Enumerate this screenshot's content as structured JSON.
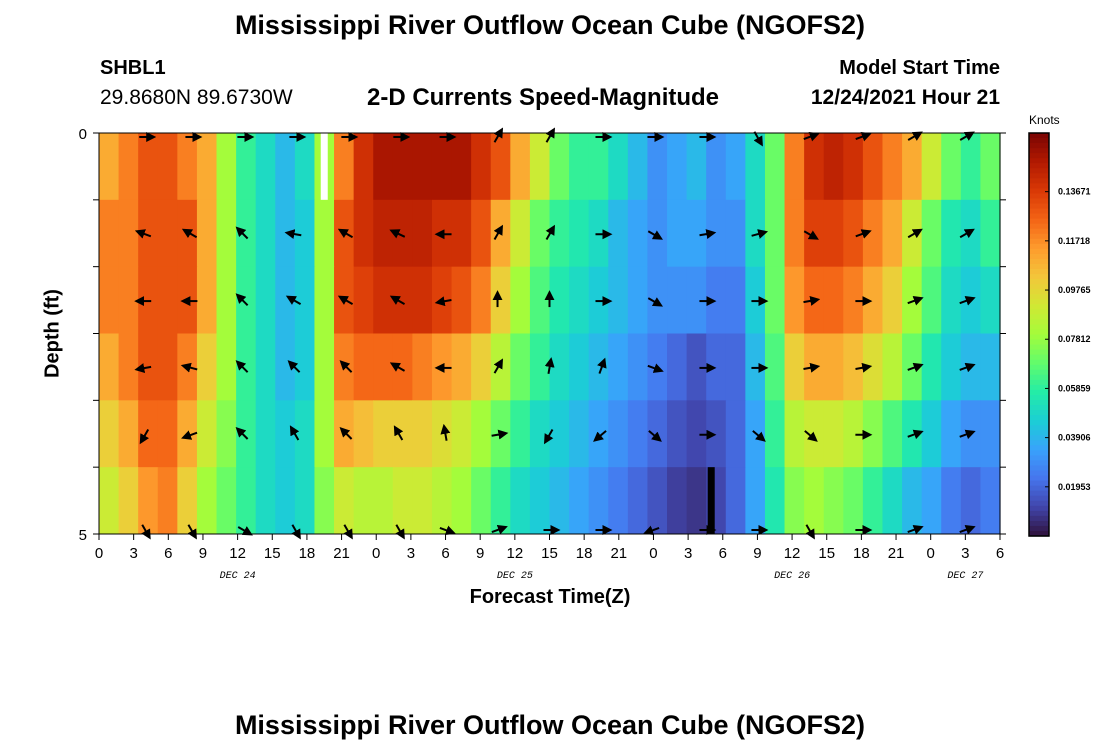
{
  "header": {
    "title": "Mississippi River Outflow Ocean Cube (NGOFS2)",
    "station_name": "SHBL1",
    "station_coords": "29.8680N  89.6730W",
    "plot_title": "2-D Currents Speed-Magnitude",
    "model_start_label": "Model Start Time",
    "model_start_value": "12/24/2021 Hour 21"
  },
  "footer": {
    "title": "Mississippi River Outflow Ocean Cube (NGOFS2)"
  },
  "colors": {
    "colormap": [
      "#30123b",
      "#4145ab",
      "#4675ed",
      "#39a2fc",
      "#1bcfd4",
      "#24eca6",
      "#61fc6c",
      "#a4fc3b",
      "#d1e834",
      "#f3c63a",
      "#fe9b2d",
      "#f36315",
      "#d93806",
      "#b11901",
      "#7a0403"
    ]
  },
  "chart_data": {
    "type": "heatmap",
    "xlabel": "Forecast Time(Z)",
    "ylabel": "Depth (ft)",
    "x_tick_labels": [
      "0",
      "3",
      "6",
      "9",
      "12",
      "15",
      "18",
      "21",
      "0",
      "3",
      "6",
      "9",
      "12",
      "15",
      "18",
      "21",
      "0",
      "3",
      "6",
      "9",
      "12",
      "15",
      "18",
      "21",
      "0",
      "3",
      "6"
    ],
    "day_labels": [
      {
        "label": "DEC 24",
        "at_tick": 4
      },
      {
        "label": "DEC 25",
        "at_tick": 12
      },
      {
        "label": "DEC 26",
        "at_tick": 20
      },
      {
        "label": "DEC 27",
        "at_tick": 25
      }
    ],
    "y_tick_labels": [
      "0",
      "5"
    ],
    "ylim": [
      0,
      5
    ],
    "x_range_hours": [
      0,
      78
    ],
    "colorbar": {
      "title": "Knots",
      "ticks": [
        "0.13671",
        "0.11718",
        "0.09765",
        "0.07812",
        "0.05859",
        "0.03906",
        "0.01953"
      ],
      "tick_values": [
        0.13671,
        0.11718,
        0.09765,
        0.07812,
        0.05859,
        0.03906,
        0.01953
      ],
      "range": [
        0.0,
        0.16
      ]
    },
    "speed_knots_surface_to_bottom": [
      [
        0.11,
        0.12,
        0.13,
        0.13,
        0.12,
        0.11,
        0.08,
        0.06,
        0.05,
        0.04,
        0.05,
        0.08,
        0.12,
        0.14,
        0.15,
        0.15,
        0.15,
        0.15,
        0.15,
        0.14,
        0.13,
        0.11,
        0.09,
        0.07,
        0.06,
        0.06,
        0.05,
        0.04,
        0.03,
        0.035,
        0.04,
        0.03,
        0.035,
        0.05,
        0.07,
        0.12,
        0.14,
        0.145,
        0.14,
        0.13,
        0.12,
        0.11,
        0.09,
        0.07,
        0.06,
        0.07
      ],
      [
        0.12,
        0.12,
        0.13,
        0.13,
        0.13,
        0.11,
        0.08,
        0.06,
        0.05,
        0.04,
        0.045,
        0.08,
        0.13,
        0.14,
        0.145,
        0.145,
        0.145,
        0.14,
        0.14,
        0.13,
        0.11,
        0.09,
        0.07,
        0.06,
        0.055,
        0.05,
        0.04,
        0.035,
        0.03,
        0.035,
        0.035,
        0.03,
        0.03,
        0.05,
        0.07,
        0.12,
        0.135,
        0.135,
        0.13,
        0.12,
        0.11,
        0.09,
        0.07,
        0.055,
        0.05,
        0.06
      ],
      [
        0.12,
        0.12,
        0.13,
        0.13,
        0.13,
        0.11,
        0.08,
        0.06,
        0.05,
        0.04,
        0.045,
        0.08,
        0.13,
        0.135,
        0.14,
        0.14,
        0.14,
        0.135,
        0.13,
        0.12,
        0.1,
        0.08,
        0.065,
        0.055,
        0.05,
        0.045,
        0.04,
        0.035,
        0.03,
        0.03,
        0.03,
        0.025,
        0.025,
        0.045,
        0.07,
        0.115,
        0.125,
        0.125,
        0.12,
        0.11,
        0.1,
        0.08,
        0.065,
        0.05,
        0.045,
        0.05
      ],
      [
        0.11,
        0.12,
        0.13,
        0.13,
        0.12,
        0.1,
        0.08,
        0.06,
        0.05,
        0.04,
        0.045,
        0.08,
        0.12,
        0.125,
        0.125,
        0.125,
        0.12,
        0.115,
        0.11,
        0.1,
        0.085,
        0.07,
        0.06,
        0.05,
        0.045,
        0.04,
        0.035,
        0.03,
        0.025,
        0.02,
        0.015,
        0.02,
        0.02,
        0.04,
        0.065,
        0.1,
        0.11,
        0.11,
        0.105,
        0.095,
        0.085,
        0.07,
        0.055,
        0.045,
        0.04,
        0.04
      ],
      [
        0.1,
        0.11,
        0.125,
        0.125,
        0.11,
        0.09,
        0.075,
        0.06,
        0.05,
        0.045,
        0.05,
        0.08,
        0.11,
        0.105,
        0.1,
        0.1,
        0.1,
        0.095,
        0.09,
        0.08,
        0.07,
        0.06,
        0.05,
        0.045,
        0.04,
        0.035,
        0.03,
        0.025,
        0.02,
        0.015,
        0.012,
        0.015,
        0.02,
        0.035,
        0.06,
        0.085,
        0.09,
        0.09,
        0.085,
        0.075,
        0.065,
        0.055,
        0.045,
        0.035,
        0.03,
        0.03
      ],
      [
        0.09,
        0.1,
        0.115,
        0.12,
        0.1,
        0.08,
        0.07,
        0.06,
        0.05,
        0.045,
        0.05,
        0.075,
        0.09,
        0.085,
        0.085,
        0.09,
        0.09,
        0.085,
        0.08,
        0.07,
        0.06,
        0.05,
        0.045,
        0.04,
        0.035,
        0.03,
        0.025,
        0.02,
        0.015,
        0.01,
        0.008,
        0.012,
        0.02,
        0.035,
        0.055,
        0.075,
        0.08,
        0.075,
        0.07,
        0.06,
        0.05,
        0.04,
        0.035,
        0.025,
        0.02,
        0.025
      ]
    ],
    "missing_columns": [
      {
        "hour": 19.5,
        "depth_row": 0,
        "color": "#ffffff"
      },
      {
        "hour": 53.0,
        "depth_row": 5,
        "color": "#000000"
      }
    ],
    "current_direction_arrows_deg": [
      {
        "hour": 4,
        "angles": [
          0,
          160,
          180,
          190,
          240,
          300
        ]
      },
      {
        "hour": 8,
        "angles": [
          0,
          150,
          180,
          165,
          200,
          300
        ]
      },
      {
        "hour": 12.5,
        "angles": [
          0,
          135,
          135,
          135,
          135,
          330
        ]
      },
      {
        "hour": 17,
        "angles": [
          0,
          170,
          150,
          135,
          120,
          300
        ]
      },
      {
        "hour": 21.5,
        "angles": [
          0,
          150,
          150,
          135,
          135,
          300
        ]
      },
      {
        "hour": 26,
        "angles": [
          0,
          155,
          150,
          150,
          120,
          300
        ]
      },
      {
        "hour": 30,
        "angles": [
          0,
          180,
          190,
          180,
          100,
          340
        ]
      },
      {
        "hour": 34.5,
        "angles": [
          60,
          60,
          90,
          60,
          10,
          20
        ]
      },
      {
        "hour": 39,
        "angles": [
          60,
          60,
          90,
          80,
          240,
          0
        ]
      },
      {
        "hour": 43.5,
        "angles": [
          0,
          0,
          0,
          70,
          220,
          0
        ]
      },
      {
        "hour": 48,
        "angles": [
          0,
          330,
          330,
          340,
          320,
          200
        ]
      },
      {
        "hour": 52.5,
        "angles": [
          0,
          10,
          0,
          0,
          0,
          0
        ]
      },
      {
        "hour": 57,
        "angles": [
          300,
          15,
          0,
          0,
          320,
          0
        ]
      },
      {
        "hour": 61.5,
        "angles": [
          20,
          330,
          10,
          10,
          320,
          300
        ]
      },
      {
        "hour": 66,
        "angles": [
          20,
          20,
          0,
          10,
          0,
          0
        ]
      },
      {
        "hour": 70.5,
        "angles": [
          30,
          30,
          20,
          20,
          20,
          20
        ]
      },
      {
        "hour": 75,
        "angles": [
          30,
          30,
          20,
          20,
          20,
          20
        ]
      }
    ]
  }
}
